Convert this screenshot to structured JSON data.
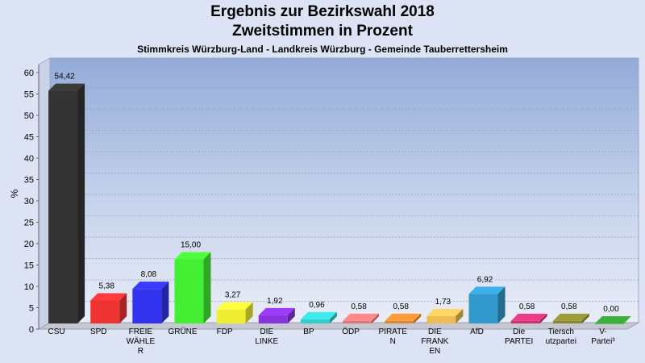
{
  "header": {
    "title": "Ergebnis zur Bezirkswahl 2018",
    "subtitle": "Zweitstimmen in Prozent",
    "location": "Stimmkreis Würzburg-Land - Landkreis Würzburg - Gemeinde Tauberrettersheim"
  },
  "chart_data": {
    "type": "bar",
    "title": "Ergebnis zur Bezirkswahl 2018",
    "subtitle": "Zweitstimmen in Prozent",
    "ylabel": "%",
    "xlabel": "",
    "ylim": [
      0,
      60
    ],
    "yticks": [
      0,
      5,
      10,
      15,
      20,
      25,
      30,
      35,
      40,
      45,
      50,
      55,
      60
    ],
    "grid": true,
    "legend": "none",
    "categories": [
      [
        "CSU"
      ],
      [
        "SPD"
      ],
      [
        "FREIE",
        "WÄHLE",
        "R"
      ],
      [
        "GRÜNE"
      ],
      [
        "FDP"
      ],
      [
        "DIE",
        "LINKE"
      ],
      [
        "BP"
      ],
      [
        "ÖDP"
      ],
      [
        "PIRATE",
        "N"
      ],
      [
        "DIE",
        "FRANK",
        "EN"
      ],
      [
        "AfD"
      ],
      [
        "Die",
        "PARTEI"
      ],
      [
        "Tiersch",
        "utzpartei"
      ],
      [
        "V-",
        "Partei³"
      ]
    ],
    "values": [
      54.42,
      5.38,
      8.08,
      15.0,
      3.27,
      1.92,
      0.96,
      0.58,
      0.58,
      1.73,
      6.92,
      0.58,
      0.58,
      0.0
    ],
    "value_labels": [
      "54,42",
      "5,38",
      "8,08",
      "15,00",
      "3,27",
      "1,92",
      "0,96",
      "0,58",
      "0,58",
      "1,73",
      "6,92",
      "0,58",
      "0,58",
      "0,00"
    ],
    "colors": [
      "#333333",
      "#ee3333",
      "#3333ee",
      "#44ee33",
      "#eeee33",
      "#8833dd",
      "#33cccc",
      "#dd7777",
      "#dd8833",
      "#eebb55",
      "#3399cc",
      "#cc3377",
      "#888833",
      "#339933"
    ]
  }
}
